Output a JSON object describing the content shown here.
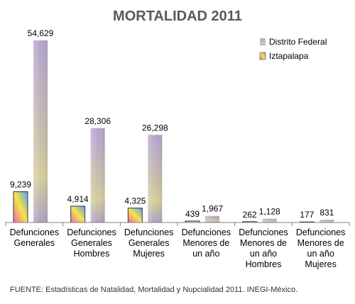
{
  "chart_data": {
    "type": "bar",
    "title": "MORTALIDAD 2011",
    "categories": [
      [
        "Defunciones",
        "Generales"
      ],
      [
        "Defunciones",
        "Generales",
        "Hombres"
      ],
      [
        "Defunciones",
        "Generales",
        "Mujeres"
      ],
      [
        "Defunciones",
        "Menores de",
        "un año"
      ],
      [
        "Defunciones",
        "Menores de",
        "un año",
        "Hombres"
      ],
      [
        "Defunciones",
        "Menores de",
        "un año",
        "Mujeres"
      ]
    ],
    "series": [
      {
        "name": "Iztapalapa",
        "values": [
          9239,
          4914,
          4325,
          439,
          262,
          177
        ],
        "labels": [
          "9,239",
          "4,914",
          "4,325",
          "439",
          "262",
          "177"
        ]
      },
      {
        "name": "Distrito Federal",
        "values": [
          54629,
          28306,
          26298,
          1967,
          1128,
          831
        ],
        "labels": [
          "54,629",
          "28,306",
          "26,298",
          "1,967",
          "1,128",
          "831"
        ]
      }
    ],
    "ylim": [
      0,
      54629
    ],
    "legend_position": "top-right",
    "grid": false
  },
  "footer": {
    "source": "FUENTE: Estadísticas de Natalidad, Mortalidad y Nupcialidad 2011. INEGI-México."
  },
  "colors": {
    "iztapalapa_gradient": [
      "#f06aa8",
      "#f7e34a",
      "#5aa0e6"
    ],
    "distrito_federal_gradient": [
      "#b7a7cf",
      "#d4cba0",
      "#a99fc4"
    ]
  }
}
